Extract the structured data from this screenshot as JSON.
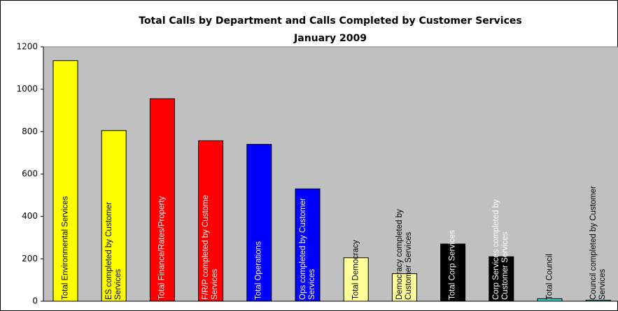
{
  "chart_data": {
    "type": "bar",
    "title": "Total Calls by Department and Calls Completed by Customer Services",
    "subtitle": "January 2009",
    "categories": [
      "Total Environmental Services",
      "ES completed by Customer\nServices",
      "Total Finance/Rates/Property",
      "F/R/P completed by Custome\nServices",
      "Total Operations",
      "Ops completed by Customer\nServices",
      "Total Democracy",
      "Democracy completed by\nCustomer Services",
      "Total Corp Services",
      "Corp Services completed by\nCustomer Services",
      "Total Council",
      "Council completed by Customer\nServices"
    ],
    "values": [
      1135,
      805,
      955,
      757,
      740,
      530,
      205,
      130,
      270,
      210,
      12,
      5
    ],
    "colors": [
      "#ffff00",
      "#ffff00",
      "#ff0000",
      "#ff0000",
      "#0000ff",
      "#0000ff",
      "#ffff99",
      "#ffff99",
      "#000000",
      "#000000",
      "#33cccc",
      "#33cccc"
    ],
    "ylim": [
      0,
      1200
    ],
    "yticks": [
      0,
      200,
      400,
      600,
      800,
      1000,
      1200
    ],
    "grid": false
  }
}
